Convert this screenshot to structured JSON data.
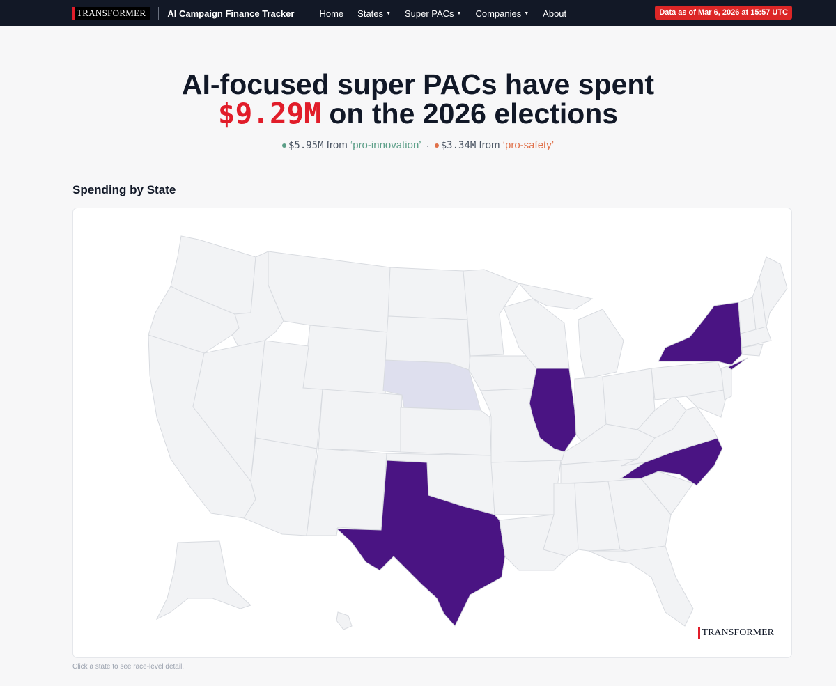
{
  "nav": {
    "brand": "TRANSFORMER",
    "app_title": "AI Campaign Finance Tracker",
    "items": [
      {
        "label": "Home",
        "dropdown": false
      },
      {
        "label": "States",
        "dropdown": true
      },
      {
        "label": "Super PACs",
        "dropdown": true
      },
      {
        "label": "Companies",
        "dropdown": true
      },
      {
        "label": "About",
        "dropdown": false
      }
    ],
    "caret": "▼",
    "data_badge": "Data as of Mar 6, 2026 at 15:57 UTC"
  },
  "hero": {
    "line1": "AI-focused super PACs have spent",
    "amount": "$9.29M",
    "line2_rest": " on the 2026 elections",
    "innovation_amount": "$5.95M",
    "from_text": " from ",
    "innovation_label": "‘pro-innovation’",
    "separator": "·",
    "safety_amount": "$3.34M",
    "safety_label": "‘pro-safety’"
  },
  "section": {
    "title": "Spending by State",
    "footnote": "Click a state to see race-level detail."
  },
  "map": {
    "watermark": "TRANSFORMER",
    "states_with_spending": [
      "New York",
      "Illinois",
      "North Carolina",
      "Texas"
    ],
    "states_low_spending": [
      "Nebraska"
    ],
    "colors": {
      "high": "#4a1483",
      "low": "#dedfee",
      "none": "#f2f3f5",
      "innovation_dot": "#5b9e87",
      "safety_dot": "#e0714a",
      "accent": "#e11d2a"
    }
  }
}
